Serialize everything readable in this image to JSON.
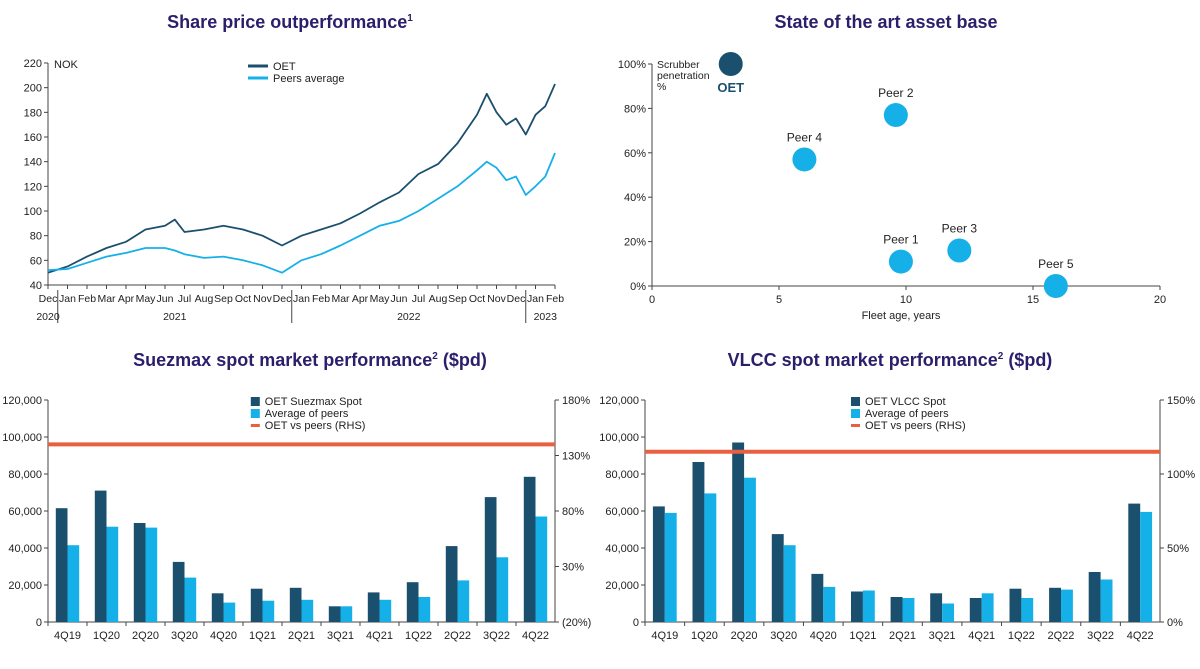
{
  "colors": {
    "oet": "#1b4f6e",
    "peers": "#16b0e8",
    "ratio": "#e8603f",
    "title": "#2a1f6b",
    "axis": "#444444",
    "grid": "#bbbbbb"
  },
  "panels": {
    "share_price": {
      "title": "Share price outperformance",
      "title_sup": "1"
    },
    "asset_base": {
      "title": "State of the art asset base"
    },
    "suezmax": {
      "title": "Suezmax spot market performance",
      "title_sup": "2",
      "title_suffix": " ($pd)"
    },
    "vlcc": {
      "title": "VLCC spot market performance",
      "title_sup": "2",
      "title_suffix": " ($pd)"
    }
  },
  "chart_data": [
    {
      "id": "share_price",
      "type": "line",
      "title": "Share price outperformance",
      "ylabel": "NOK",
      "ylim": [
        40,
        220
      ],
      "yticks": [
        40,
        60,
        80,
        100,
        120,
        140,
        160,
        180,
        200,
        220
      ],
      "xlim": [
        0,
        26
      ],
      "month_labels": [
        "Dec",
        "Jan",
        "Feb",
        "Mar",
        "Apr",
        "May",
        "Jun",
        "Jul",
        "Aug",
        "Sep",
        "Oct",
        "Nov",
        "Dec",
        "Jan",
        "Feb",
        "Mar",
        "Apr",
        "May",
        "Jun",
        "Jul",
        "Aug",
        "Sep",
        "Oct",
        "Nov",
        "Dec",
        "Jan",
        "Feb"
      ],
      "year_labels": [
        {
          "label": "2020",
          "x": 0
        },
        {
          "label": "2021",
          "x": 6.5
        },
        {
          "label": "2022",
          "x": 18.5
        },
        {
          "label": "2023",
          "x": 25.5
        }
      ],
      "year_separators": [
        0.5,
        12.5,
        24.5
      ],
      "legend": "top-center",
      "series": [
        {
          "name": "OET",
          "color": "#1b4f6e",
          "x": [
            0,
            1,
            2,
            3,
            4,
            5,
            6,
            6.5,
            7,
            8,
            9,
            10,
            11,
            12,
            13,
            14,
            15,
            16,
            17,
            18,
            19,
            20,
            21,
            22,
            22.5,
            23,
            23.5,
            24,
            24.5,
            25,
            25.5,
            26
          ],
          "y": [
            50,
            55,
            63,
            70,
            75,
            85,
            88,
            93,
            83,
            85,
            88,
            85,
            80,
            72,
            80,
            85,
            90,
            98,
            107,
            115,
            130,
            138,
            155,
            178,
            195,
            180,
            170,
            175,
            162,
            178,
            185,
            203
          ]
        },
        {
          "name": "Peers average",
          "color": "#16b0e8",
          "x": [
            0,
            1,
            2,
            3,
            4,
            5,
            6,
            6.5,
            7,
            8,
            9,
            10,
            11,
            12,
            13,
            14,
            15,
            16,
            17,
            18,
            19,
            20,
            21,
            22,
            22.5,
            23,
            23.5,
            24,
            24.5,
            25,
            25.5,
            26
          ],
          "y": [
            52,
            53,
            58,
            63,
            66,
            70,
            70,
            68,
            65,
            62,
            63,
            60,
            56,
            50,
            60,
            65,
            72,
            80,
            88,
            92,
            100,
            110,
            120,
            133,
            140,
            135,
            125,
            128,
            113,
            120,
            128,
            147
          ]
        }
      ]
    },
    {
      "id": "asset_base",
      "type": "scatter",
      "title": "State of the art asset base",
      "xlabel": "Fleet age, years",
      "ylabel": "Scrubber penetration %",
      "xlim": [
        0,
        20
      ],
      "ylim": [
        0,
        100
      ],
      "xticks": [
        0,
        5,
        10,
        15,
        20
      ],
      "yticks": [
        0,
        20,
        40,
        60,
        80,
        100
      ],
      "points": [
        {
          "label": "OET",
          "x": 3.1,
          "y": 100,
          "color": "#1b4f6e"
        },
        {
          "label": "Peer 2",
          "x": 9.6,
          "y": 77,
          "color": "#16b0e8"
        },
        {
          "label": "Peer 4",
          "x": 6.0,
          "y": 57,
          "color": "#16b0e8"
        },
        {
          "label": "Peer 1",
          "x": 9.8,
          "y": 11,
          "color": "#16b0e8"
        },
        {
          "label": "Peer 3",
          "x": 12.1,
          "y": 16,
          "color": "#16b0e8"
        },
        {
          "label": "Peer 5",
          "x": 15.9,
          "y": 0,
          "color": "#16b0e8"
        }
      ]
    },
    {
      "id": "suezmax",
      "type": "bar",
      "title": "Suezmax spot market performance ($pd)",
      "categories": [
        "4Q19",
        "1Q20",
        "2Q20",
        "3Q20",
        "4Q20",
        "1Q21",
        "2Q21",
        "3Q21",
        "4Q21",
        "1Q22",
        "2Q22",
        "3Q22",
        "4Q22"
      ],
      "ylim": [
        0,
        120000
      ],
      "yticks": [
        0,
        20000,
        40000,
        60000,
        80000,
        100000,
        120000
      ],
      "ytick_labels": [
        "0",
        "20,000",
        "40,000",
        "60,000",
        "80,000",
        "100,000",
        "120,000"
      ],
      "y2lim": [
        -20,
        180
      ],
      "y2ticks": [
        -20,
        30,
        80,
        130,
        180
      ],
      "y2tick_labels": [
        "(20%)",
        "30%",
        "80%",
        "130%",
        "180%"
      ],
      "legend": "top-center",
      "series": [
        {
          "name": "OET Suezmax Spot",
          "color": "#1b4f6e",
          "values": [
            61500,
            71000,
            53500,
            32500,
            15500,
            18000,
            18500,
            8500,
            16000,
            21500,
            41000,
            67500,
            78500
          ]
        },
        {
          "name": "Average of peers",
          "color": "#16b0e8",
          "values": [
            41500,
            51500,
            51000,
            24000,
            10500,
            11500,
            12000,
            8500,
            12000,
            13500,
            22500,
            35000,
            57000
          ]
        }
      ],
      "line": {
        "name": "OET vs peers (RHS)",
        "color": "#e8603f",
        "value": 140,
        "axis": "right"
      }
    },
    {
      "id": "vlcc",
      "type": "bar",
      "title": "VLCC spot market performance ($pd)",
      "categories": [
        "4Q19",
        "1Q20",
        "2Q20",
        "3Q20",
        "4Q20",
        "1Q21",
        "2Q21",
        "3Q21",
        "4Q21",
        "1Q22",
        "2Q22",
        "3Q22",
        "4Q22"
      ],
      "ylim": [
        0,
        120000
      ],
      "yticks": [
        0,
        20000,
        40000,
        60000,
        80000,
        100000,
        120000
      ],
      "ytick_labels": [
        "0",
        "20,000",
        "40,000",
        "60,000",
        "80,000",
        "100,000",
        "120,000"
      ],
      "y2lim": [
        0,
        150
      ],
      "y2ticks": [
        0,
        50,
        100,
        150
      ],
      "y2tick_labels": [
        "0%",
        "50%",
        "100%",
        "150%"
      ],
      "legend": "top-center",
      "series": [
        {
          "name": "OET VLCC Spot",
          "color": "#1b4f6e",
          "values": [
            62500,
            86500,
            97000,
            47500,
            26000,
            16500,
            13500,
            15500,
            13000,
            18000,
            18500,
            27000,
            64000
          ]
        },
        {
          "name": "Average of peers",
          "color": "#16b0e8",
          "values": [
            59000,
            69500,
            78000,
            41500,
            19000,
            17000,
            13000,
            10000,
            15500,
            13000,
            17500,
            23000,
            59500
          ]
        }
      ],
      "line": {
        "name": "OET vs peers (RHS)",
        "color": "#e8603f",
        "value": 115,
        "axis": "right"
      }
    }
  ]
}
